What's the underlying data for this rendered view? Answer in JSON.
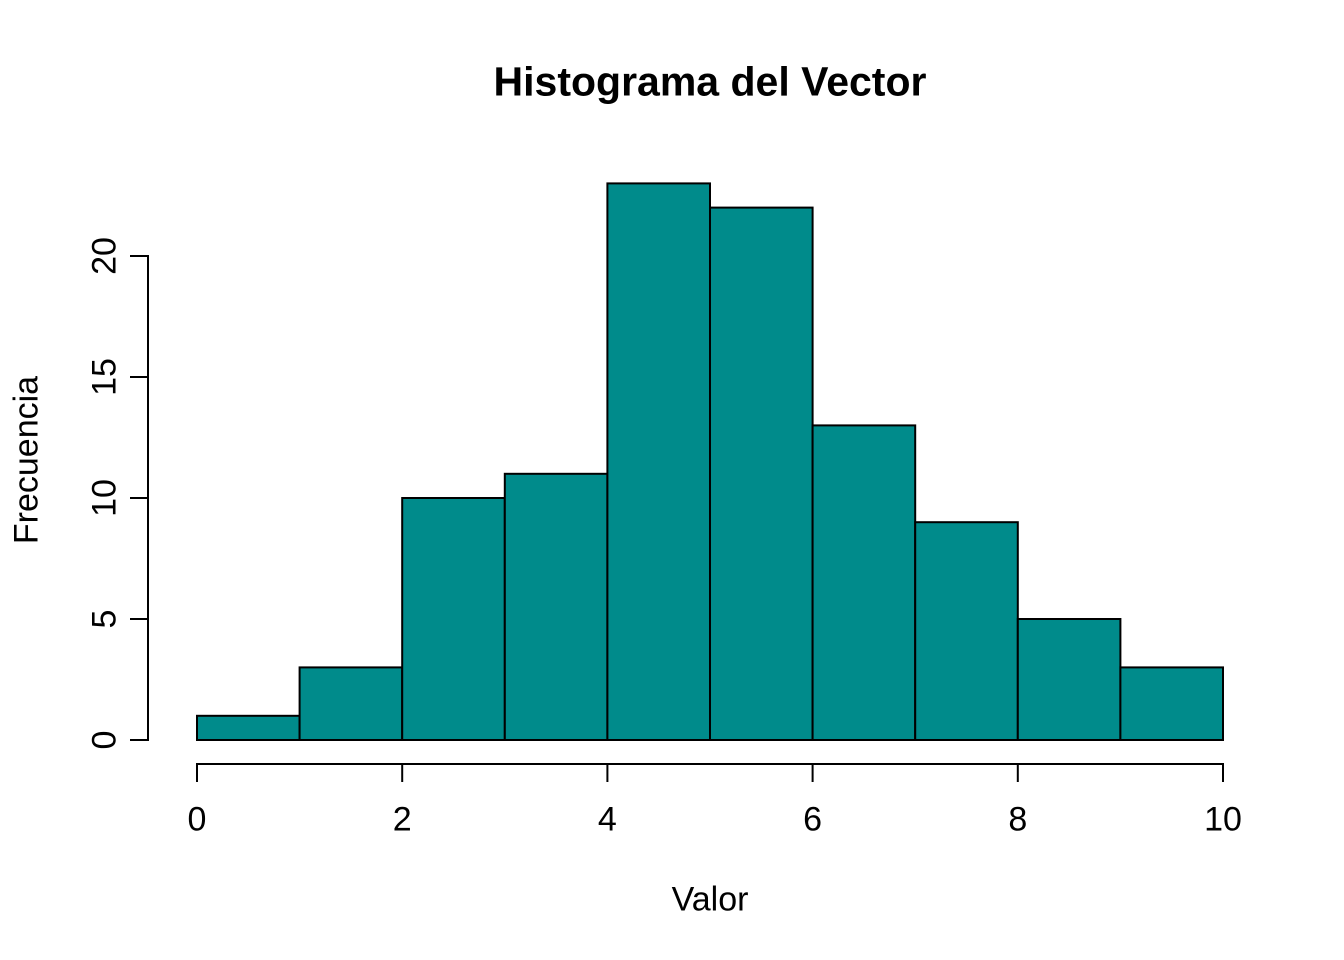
{
  "figure": {
    "background_color": "#ffffff"
  },
  "chart_data": {
    "type": "bar",
    "subtype": "histogram",
    "title": "Histograma del Vector",
    "xlabel": "Valor",
    "ylabel": "Frecuencia",
    "bin_edges": [
      0,
      1,
      2,
      3,
      4,
      5,
      6,
      7,
      8,
      9,
      10
    ],
    "counts": [
      1,
      3,
      10,
      11,
      23,
      22,
      13,
      9,
      5,
      3
    ],
    "x_ticks": [
      0,
      2,
      4,
      6,
      8,
      10
    ],
    "y_ticks": [
      0,
      5,
      10,
      15,
      20
    ],
    "xlim": [
      0,
      10
    ],
    "ylim": [
      0,
      23
    ],
    "grid": false,
    "legend_position": "none",
    "bar_fill_color": "#008B8B",
    "bar_border_color": "#000000",
    "axis_color": "#000000",
    "text_color": "#000000"
  }
}
